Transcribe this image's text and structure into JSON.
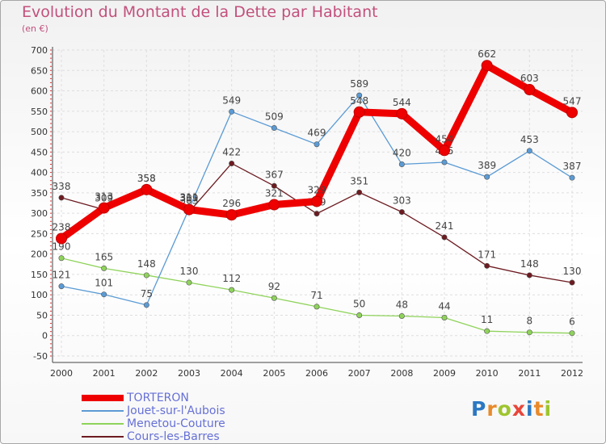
{
  "title": "Evolution du Montant de la Dette par Habitant",
  "subtitle": "(en €)",
  "brand": {
    "letters": [
      "P",
      "r",
      "o",
      "x",
      "i",
      "t",
      "i"
    ],
    "colors": [
      "#2b78c2",
      "#e98a2a",
      "#9ec52e",
      "#e8463a",
      "#2b78c2",
      "#e98a2a",
      "#9ec52e"
    ]
  },
  "chart_data": {
    "type": "line",
    "x": [
      "2000",
      "2001",
      "2002",
      "2003",
      "2004",
      "2005",
      "2006",
      "2007",
      "2008",
      "2009",
      "2010",
      "2011",
      "2012"
    ],
    "ylim": [
      -50,
      700
    ],
    "yticks": [
      "-50",
      "0",
      "50",
      "100",
      "150",
      "200",
      "250",
      "300",
      "350",
      "400",
      "450",
      "500",
      "550",
      "600",
      "650",
      "700"
    ],
    "grid": true,
    "legend_position": "bottom-left",
    "series": [
      {
        "name": "Cours-les-Barres",
        "color": "#6d1b21",
        "values": [
          338,
          309,
          358,
          303,
          422,
          367,
          299,
          351,
          303,
          241,
          171,
          148,
          130
        ],
        "labels": [
          "338",
          "309",
          "358",
          "303",
          "422",
          "367",
          "299",
          "351",
          "303",
          "241",
          "171",
          "148",
          "130"
        ]
      },
      {
        "name": "Menetou-Couture",
        "color": "#8fd35b",
        "values": [
          190,
          165,
          148,
          130,
          112,
          92,
          71,
          50,
          48,
          44,
          11,
          8,
          6
        ],
        "labels": [
          "190",
          "165",
          "148",
          "130",
          "112",
          "92",
          "71",
          "50",
          "48",
          "44",
          "11",
          "8",
          "6"
        ]
      },
      {
        "name": "Jouet-sur-l'Aubois",
        "color": "#5b9bd5",
        "values": [
          121,
          101,
          75,
          311,
          549,
          509,
          469,
          589,
          420,
          425,
          389,
          453,
          387
        ],
        "labels": [
          "121",
          "101",
          "75",
          "311",
          "549",
          "509",
          "469",
          "589",
          "420",
          "425",
          "389",
          "453",
          "387"
        ]
      },
      {
        "name": "TORTERON",
        "color": "#ee0000",
        "values": [
          238,
          313,
          358,
          309,
          296,
          321,
          329,
          548,
          544,
          454,
          662,
          603,
          547
        ],
        "labels": [
          "238",
          "313",
          "358",
          "309",
          "296",
          "321",
          "329",
          "548",
          "544",
          "454",
          "662",
          "603",
          "547"
        ]
      }
    ]
  }
}
